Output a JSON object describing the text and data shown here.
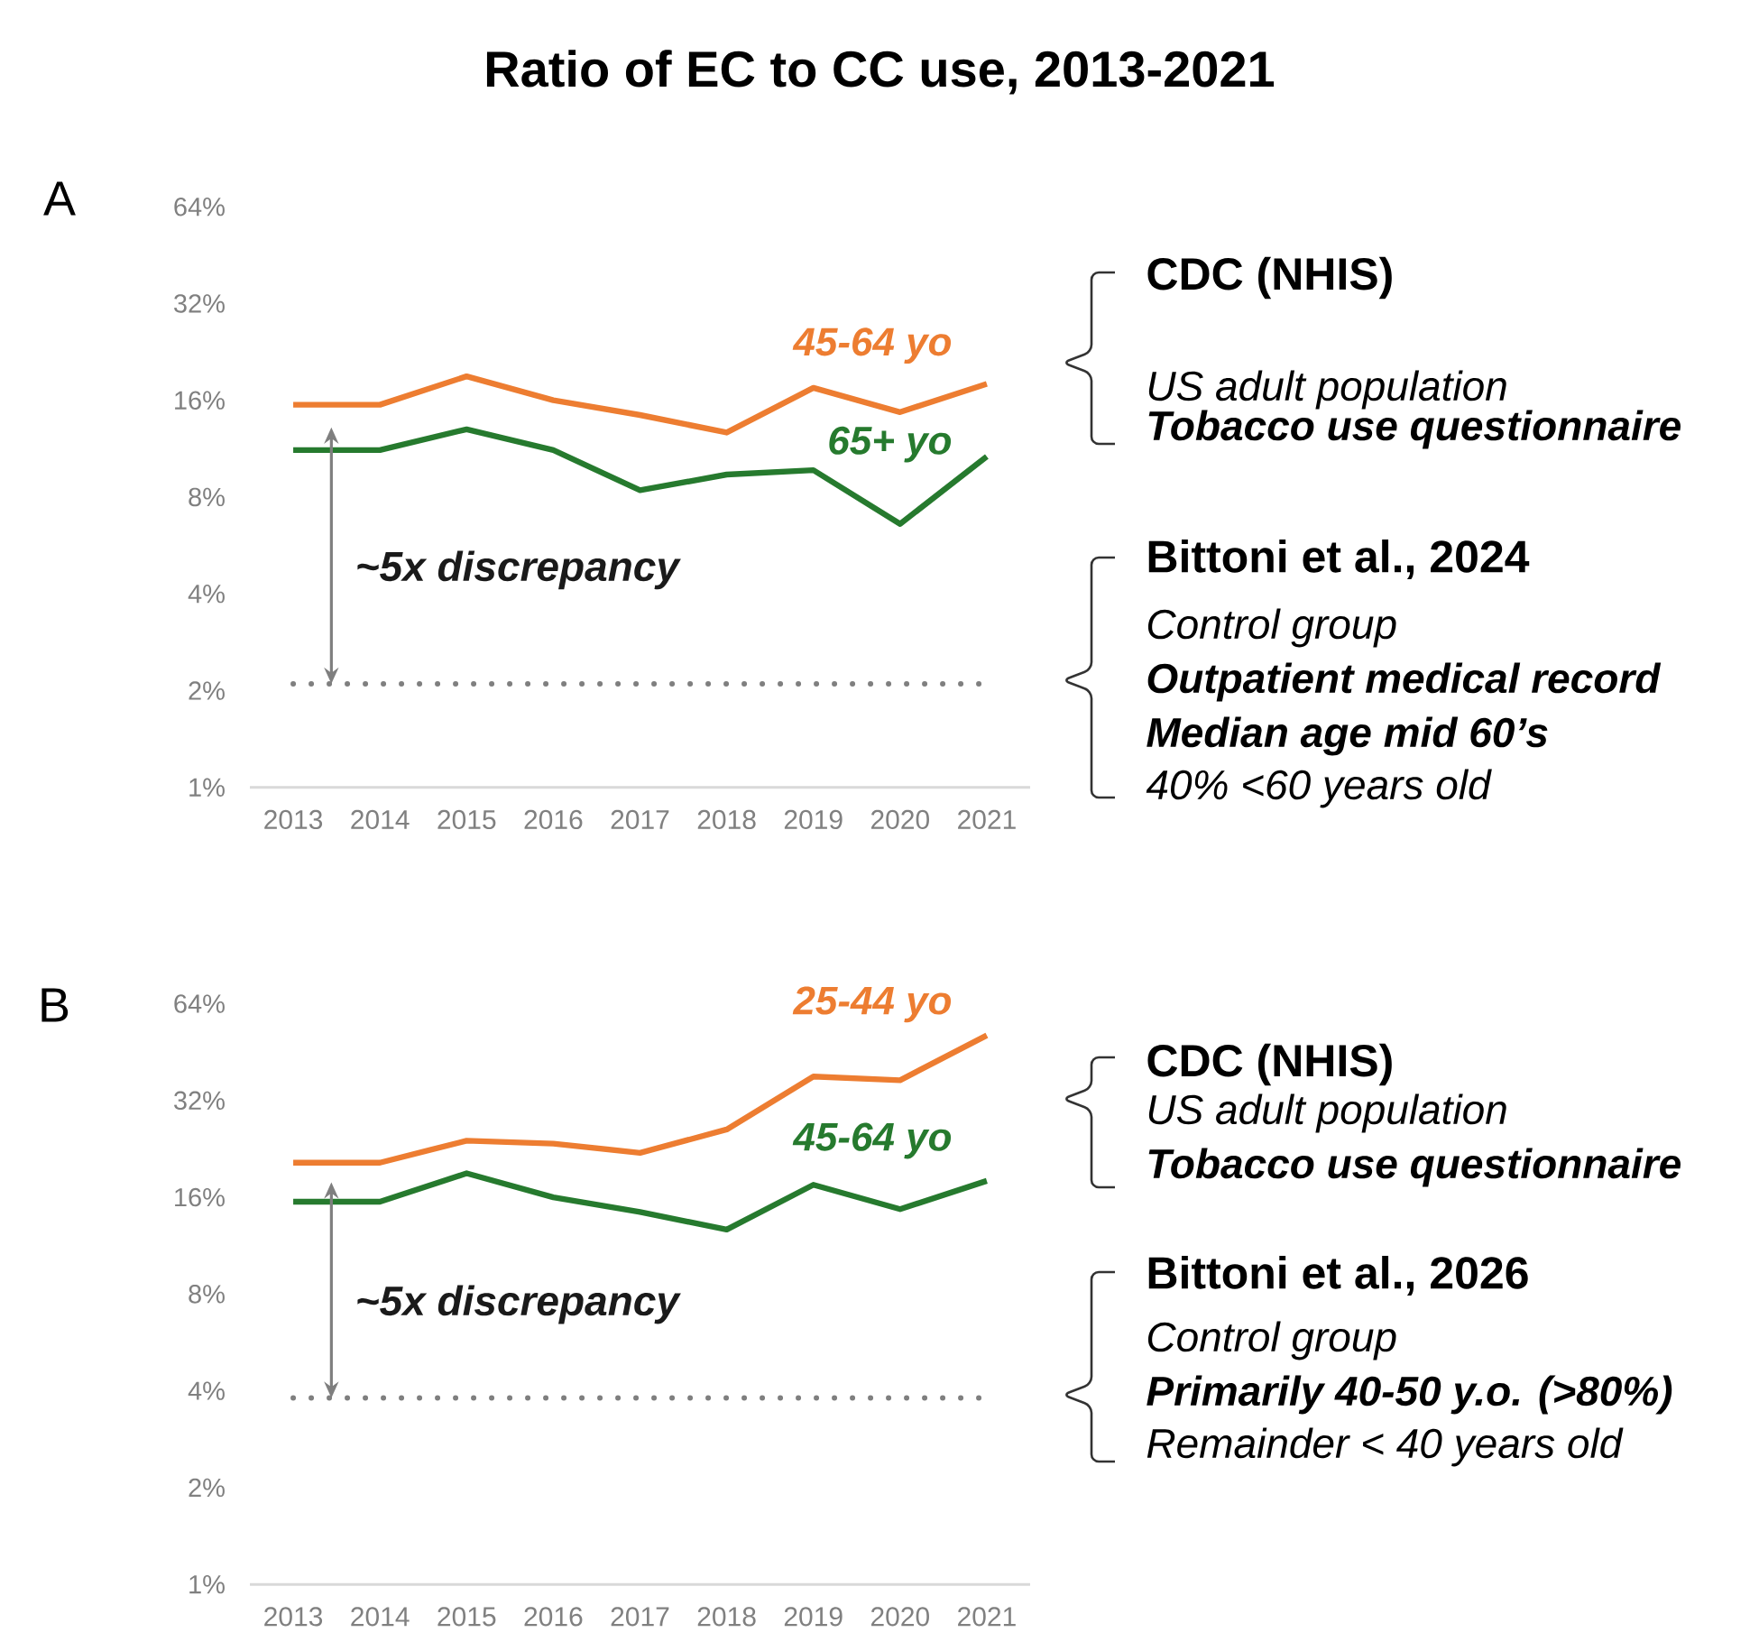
{
  "chart_data": [
    {
      "type": "line",
      "title": "Ratio of EC to CC use, 2013-2021",
      "categories": [
        "2013",
        "2014",
        "2015",
        "2016",
        "2017",
        "2018",
        "2019",
        "2020",
        "2021"
      ],
      "series": [
        {
          "name": "45-64 yo",
          "color": "#ed7d31",
          "values": [
            15.5,
            15.5,
            19,
            16,
            14.4,
            12.7,
            17.5,
            14.7,
            18
          ]
        },
        {
          "name": "65+ yo",
          "color": "#267a2e",
          "values": [
            11.2,
            11.2,
            13,
            11.2,
            8.4,
            9.4,
            9.7,
            6.6,
            10.7
          ]
        }
      ],
      "log": "y",
      "ylim": [
        1,
        64
      ],
      "yticks": [
        {
          "value": 1,
          "label": "1%"
        },
        {
          "value": 2,
          "label": "2%"
        },
        {
          "value": 4,
          "label": "4%"
        },
        {
          "value": 8,
          "label": "8%"
        },
        {
          "value": 16,
          "label": "16%"
        },
        {
          "value": 32,
          "label": "32%"
        },
        {
          "value": 64,
          "label": "64%"
        }
      ],
      "ref_lines": [
        {
          "axis": "y",
          "value": 2.1,
          "color": "#7f7f7f",
          "line_style": "dotted"
        }
      ],
      "annotations": [
        "A",
        "~5x discrepancy",
        "CDC (NHIS)",
        "US adult population",
        "Tobacco use questionnaire",
        "Bittoni et al., 2024",
        "Control group",
        "Outpatient medical record",
        "Median age mid 60’s",
        "40% <60 years old"
      ]
    },
    {
      "type": "line",
      "categories": [
        "2013",
        "2014",
        "2015",
        "2016",
        "2017",
        "2018",
        "2019",
        "2020",
        "2021"
      ],
      "series": [
        {
          "name": "25-44 yo",
          "color": "#ed7d31",
          "values": [
            20.5,
            20.5,
            24,
            23.5,
            22,
            26,
            38,
            37,
            51
          ]
        },
        {
          "name": "45-64 yo",
          "color": "#267a2e",
          "values": [
            15.5,
            15.5,
            19,
            16,
            14.4,
            12.7,
            17.5,
            14.7,
            18
          ]
        }
      ],
      "log": "y",
      "ylim": [
        1,
        64
      ],
      "yticks": [
        {
          "value": 1,
          "label": "1%"
        },
        {
          "value": 2,
          "label": "2%"
        },
        {
          "value": 4,
          "label": "4%"
        },
        {
          "value": 8,
          "label": "8%"
        },
        {
          "value": 16,
          "label": "16%"
        },
        {
          "value": 32,
          "label": "32%"
        },
        {
          "value": 64,
          "label": "64%"
        }
      ],
      "ref_lines": [
        {
          "axis": "y",
          "value": 3.8,
          "color": "#7f7f7f",
          "line_style": "dotted"
        }
      ],
      "annotations": [
        "B",
        "~5x discrepancy",
        "CDC (NHIS)",
        "US adult population",
        "Tobacco use questionnaire",
        "Bittoni et al., 2026",
        "Control group",
        "Primarily 40-50 y.o. (>80%)",
        "Remainder < 40 years old"
      ]
    }
  ]
}
